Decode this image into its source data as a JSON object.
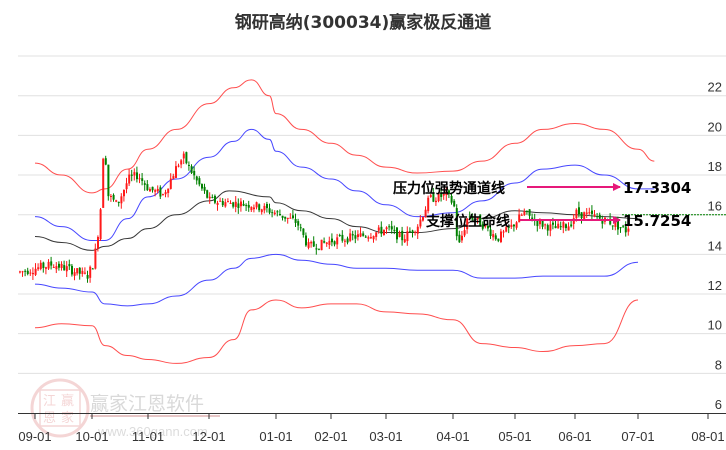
{
  "title": "钢研高纳(300034)赢家极反通道",
  "watermark": {
    "brand": "赢家江恩软件",
    "url": "www.360gann.com",
    "seal_chars": [
      "江",
      "赢",
      "恩",
      "家"
    ]
  },
  "colors": {
    "up_candle": "#ff1a1a",
    "down_candle": "#008000",
    "outer_band": "#ff3b3b",
    "inner_band": "#3333ff",
    "mid_line": "#222222",
    "arrow": "#e6197a",
    "last_price_line": "#008000",
    "grid": "#e0e0e0"
  },
  "chart_data": {
    "type": "candlestick",
    "title": "钢研高纳(300034)赢家极反通道",
    "xlabel": "",
    "ylabel": "",
    "ylim": [
      6,
      24
    ],
    "yticks": [
      6,
      8,
      10,
      12,
      14,
      16,
      18,
      20,
      22
    ],
    "xticks": [
      "09-01",
      "10-01",
      "11-01",
      "12-01",
      "01-01",
      "02-01",
      "03-01",
      "04-01",
      "05-01",
      "06-01",
      "07-01",
      "08-01"
    ],
    "grid": "horizontal",
    "annotations": [
      {
        "label": "压力位强势通道线",
        "value": "17.3304"
      },
      {
        "label": "支撑位生命线",
        "value": "15.7254"
      }
    ],
    "last_price_marker": 16.0,
    "series": [
      {
        "name": "outer_upper_band",
        "color": "red",
        "points": [
          [
            "09-01",
            18.6
          ],
          [
            "09-15",
            18.0
          ],
          [
            "10-01",
            17.1
          ],
          [
            "10-08",
            17.3
          ],
          [
            "10-20",
            18.3
          ],
          [
            "11-01",
            19.3
          ],
          [
            "11-15",
            20.3
          ],
          [
            "12-01",
            21.6
          ],
          [
            "12-12",
            22.4
          ],
          [
            "12-20",
            22.8
          ],
          [
            "12-28",
            22.0
          ],
          [
            "01-01",
            21.1
          ],
          [
            "01-15",
            20.3
          ],
          [
            "02-01",
            19.6
          ],
          [
            "02-15",
            19.0
          ],
          [
            "03-01",
            18.4
          ],
          [
            "03-15",
            18.1
          ],
          [
            "04-01",
            18.2
          ],
          [
            "04-15",
            18.7
          ],
          [
            "05-01",
            19.6
          ],
          [
            "05-15",
            20.3
          ],
          [
            "06-01",
            20.6
          ],
          [
            "06-15",
            20.3
          ],
          [
            "07-01",
            19.3
          ],
          [
            "07-08",
            18.7
          ]
        ]
      },
      {
        "name": "inner_upper_band",
        "color": "blue",
        "points": [
          [
            "09-01",
            15.9
          ],
          [
            "09-15",
            15.4
          ],
          [
            "10-01",
            14.7
          ],
          [
            "10-08",
            14.7
          ],
          [
            "10-20",
            15.8
          ],
          [
            "11-01",
            16.9
          ],
          [
            "11-15",
            17.8
          ],
          [
            "12-01",
            18.9
          ],
          [
            "12-12",
            19.7
          ],
          [
            "12-20",
            20.3
          ],
          [
            "12-28",
            19.8
          ],
          [
            "01-01",
            19.2
          ],
          [
            "01-15",
            18.4
          ],
          [
            "02-01",
            17.8
          ],
          [
            "02-15",
            17.2
          ],
          [
            "03-01",
            16.5
          ],
          [
            "03-15",
            15.9
          ],
          [
            "04-01",
            16.1
          ],
          [
            "04-15",
            16.7
          ],
          [
            "05-01",
            17.6
          ],
          [
            "05-15",
            18.3
          ],
          [
            "06-01",
            18.5
          ],
          [
            "06-15",
            18.0
          ],
          [
            "07-01",
            17.3
          ],
          [
            "07-08",
            17.3
          ]
        ]
      },
      {
        "name": "middle_line",
        "color": "black",
        "points": [
          [
            "09-01",
            14.9
          ],
          [
            "09-15",
            14.6
          ],
          [
            "10-01",
            14.2
          ],
          [
            "10-08",
            14.4
          ],
          [
            "10-20",
            14.8
          ],
          [
            "11-01",
            15.3
          ],
          [
            "11-15",
            16.0
          ],
          [
            "12-01",
            16.7
          ],
          [
            "12-10",
            17.2
          ],
          [
            "12-28",
            16.9
          ],
          [
            "01-01",
            16.6
          ],
          [
            "01-15",
            16.2
          ],
          [
            "02-01",
            15.8
          ],
          [
            "02-15",
            15.4
          ],
          [
            "03-01",
            15.1
          ],
          [
            "03-15",
            15.1
          ],
          [
            "04-01",
            15.3
          ],
          [
            "04-15",
            15.8
          ],
          [
            "05-01",
            16.2
          ],
          [
            "05-15",
            16.1
          ],
          [
            "06-01",
            16.0
          ],
          [
            "06-15",
            15.9
          ],
          [
            "07-01",
            15.8
          ]
        ]
      },
      {
        "name": "inner_lower_band",
        "color": "blue",
        "points": [
          [
            "09-01",
            12.5
          ],
          [
            "09-15",
            12.3
          ],
          [
            "10-01",
            12.1
          ],
          [
            "10-08",
            11.5
          ],
          [
            "10-20",
            11.4
          ],
          [
            "11-01",
            11.5
          ],
          [
            "11-15",
            11.9
          ],
          [
            "12-01",
            12.7
          ],
          [
            "12-12",
            13.3
          ],
          [
            "12-20",
            13.8
          ],
          [
            "01-01",
            14.0
          ],
          [
            "01-15",
            13.7
          ],
          [
            "02-01",
            13.5
          ],
          [
            "02-15",
            13.3
          ],
          [
            "03-01",
            13.3
          ],
          [
            "03-15",
            13.2
          ],
          [
            "04-01",
            13.2
          ],
          [
            "04-15",
            12.8
          ],
          [
            "05-01",
            12.8
          ],
          [
            "05-15",
            12.9
          ],
          [
            "06-01",
            12.9
          ],
          [
            "06-15",
            12.9
          ],
          [
            "07-01",
            13.6
          ]
        ]
      },
      {
        "name": "outer_lower_band",
        "color": "red",
        "points": [
          [
            "09-01",
            10.3
          ],
          [
            "09-15",
            10.5
          ],
          [
            "10-01",
            10.4
          ],
          [
            "10-08",
            9.4
          ],
          [
            "10-20",
            8.9
          ],
          [
            "11-01",
            8.7
          ],
          [
            "11-15",
            8.5
          ],
          [
            "12-01",
            8.8
          ],
          [
            "12-12",
            9.7
          ],
          [
            "12-20",
            11.2
          ],
          [
            "01-01",
            11.7
          ],
          [
            "01-15",
            11.3
          ],
          [
            "02-01",
            11.5
          ],
          [
            "02-15",
            11.5
          ],
          [
            "03-01",
            11.1
          ],
          [
            "03-15",
            11.0
          ],
          [
            "04-01",
            10.7
          ],
          [
            "04-15",
            9.5
          ],
          [
            "05-01",
            9.3
          ],
          [
            "05-15",
            9.1
          ],
          [
            "06-01",
            9.4
          ],
          [
            "06-15",
            9.5
          ],
          [
            "07-01",
            11.7
          ]
        ]
      }
    ],
    "candles_summary": {
      "note": "daily OHLC candles, red=up green=down",
      "ranges": [
        {
          "period": "09-01 to 10-01",
          "low": 12.8,
          "high": 13.9
        },
        {
          "period": "10-01 to 10-08",
          "low": 13.0,
          "high": 20.4,
          "note": "sharp spike to ~20.4"
        },
        {
          "period": "10-08 to 11-20",
          "low": 16.2,
          "high": 19.0
        },
        {
          "period": "11-20 to 12-31",
          "low": 15.5,
          "high": 17.0
        },
        {
          "period": "01-01 to 02-01",
          "low": 14.2,
          "high": 16.0
        },
        {
          "period": "02-01 to 03-15",
          "low": 14.6,
          "high": 15.9
        },
        {
          "period": "03-15 to 04-01",
          "low": 15.4,
          "high": 17.8
        },
        {
          "period": "04-01 to 05-01",
          "low": 13.8,
          "high": 16.6
        },
        {
          "period": "05-01 to 07-01",
          "low": 14.7,
          "high": 16.4
        }
      ]
    }
  }
}
